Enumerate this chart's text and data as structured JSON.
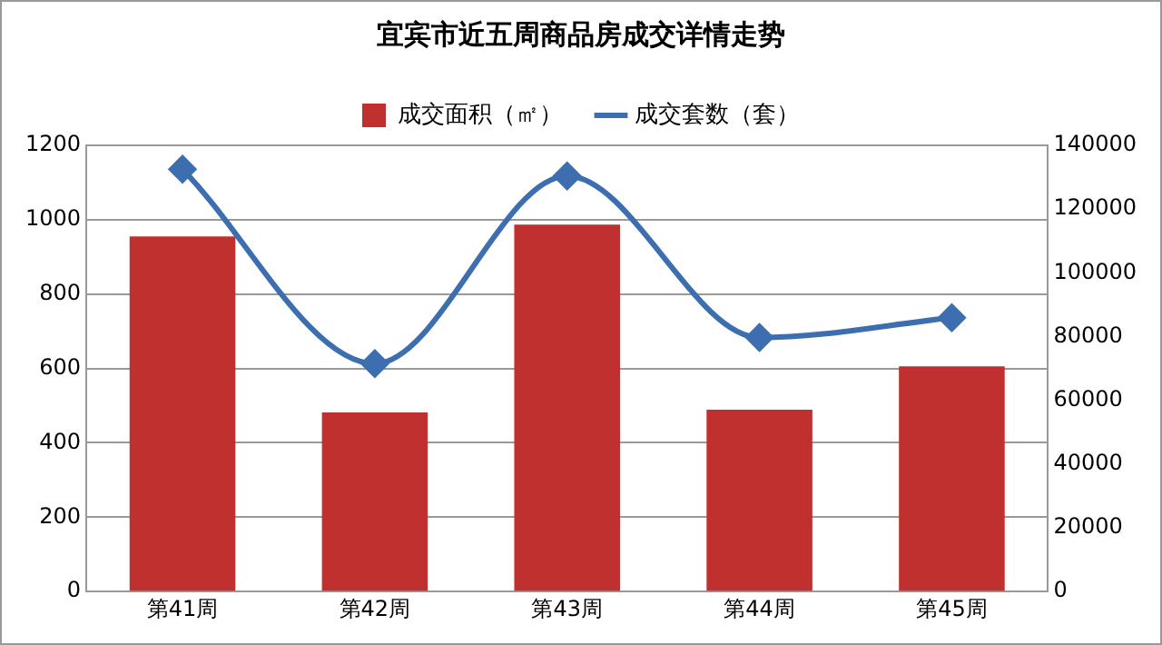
{
  "chart_data": {
    "type": "bar",
    "title": "宜宾市近五周商品房成交详情走势",
    "categories": [
      "第41周",
      "第42周",
      "第43周",
      "第44周",
      "第45周"
    ],
    "series": [
      {
        "name": "成交面积（㎡）",
        "type": "bar",
        "color": "#c0302e",
        "values": [
          955,
          482,
          987,
          489,
          606
        ]
      },
      {
        "name": "成交套数（套）",
        "type": "line",
        "axis": "y2",
        "color": "#3c6eb0",
        "values": [
          132500,
          71500,
          130400,
          79700,
          85900
        ]
      }
    ],
    "ylim": [
      0,
      1200
    ],
    "yticks": [
      0,
      200,
      400,
      600,
      800,
      1000,
      1200
    ],
    "y2lim": [
      0,
      140000
    ],
    "y2ticks": [
      0,
      20000,
      40000,
      60000,
      80000,
      100000,
      120000,
      140000
    ],
    "grid": "y",
    "legend": "top",
    "marker": "diamond",
    "line_style": "solid"
  }
}
